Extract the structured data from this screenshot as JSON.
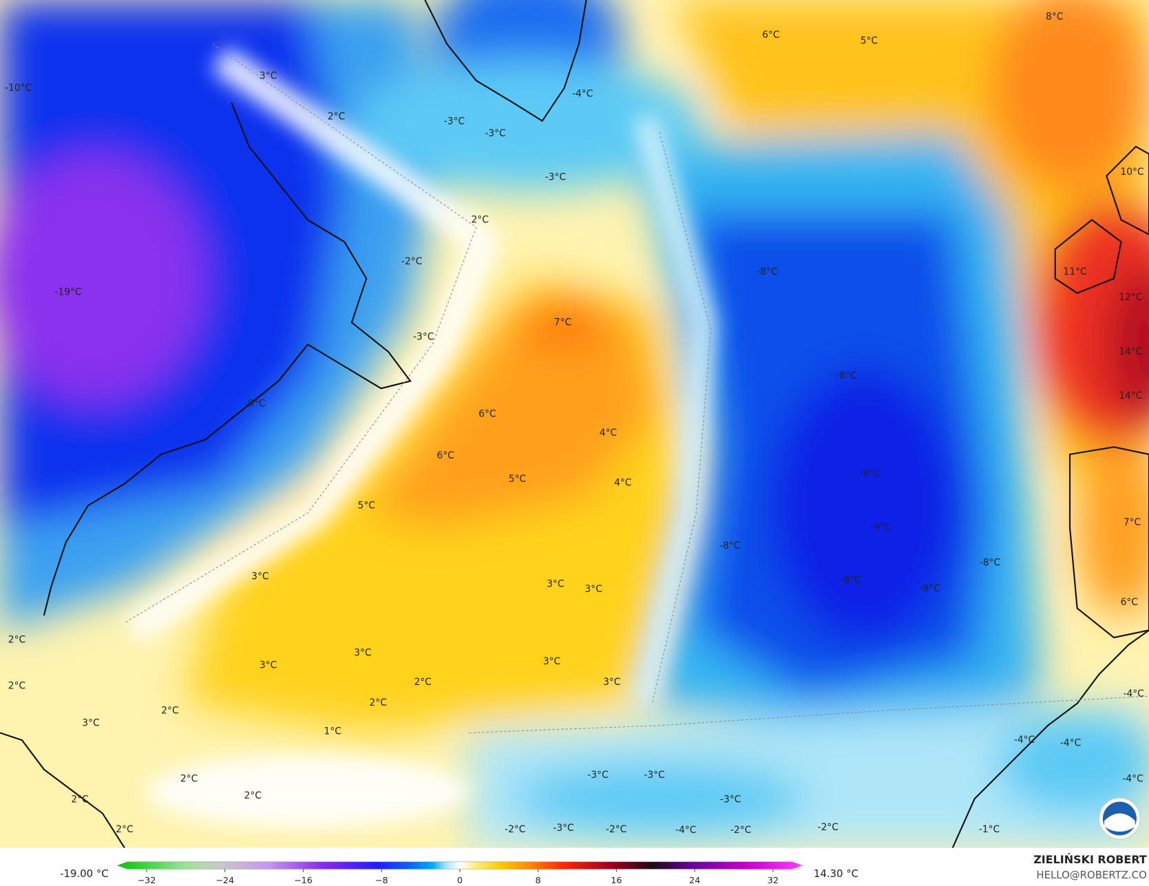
{
  "map": {
    "labels": [
      "-10°C",
      "3°C",
      "2°C",
      "-3°C",
      "-3°C",
      "-4°C",
      "-3°C",
      "6°C",
      "5°C",
      "8°C",
      "10°C",
      "2°C",
      "-2°C",
      "-19°C",
      "-3°C",
      "7°C",
      "-8°C",
      "11°C",
      "12°C",
      "14°C",
      "14°C",
      "-8°C",
      "-9°C",
      "6°C",
      "4°C",
      "6°C",
      "5°C",
      "4°C",
      "-9°C",
      "5°C",
      "7°C",
      "-9°C",
      "-8°C",
      "-8°C",
      "3°C",
      "3°C",
      "3°C",
      "-8°C",
      "-9°C",
      "6°C",
      "2°C",
      "3°C",
      "3°C",
      "3°C",
      "2°C",
      "3°C",
      "2°C",
      "2°C",
      "2°C",
      "-4°C",
      "3°C",
      "1°C",
      "-4°C",
      "-4°C",
      "-3°C",
      "-3°C",
      "2°C",
      "-4°C",
      "2°C",
      "-3°C",
      "2°C",
      "2°C",
      "-2°C",
      "-3°C",
      "-2°C",
      "-4°C",
      "-2°C",
      "-2°C",
      "-1°C"
    ]
  },
  "colorbar": {
    "min_label": "-19.00 °C",
    "max_label": "14.30 °C",
    "lim": [
      -35,
      35
    ],
    "ticks": [
      {
        "value": -32,
        "label": "−32"
      },
      {
        "value": -24,
        "label": "−24"
      },
      {
        "value": -16,
        "label": "−16"
      },
      {
        "value": -8,
        "label": "−8"
      },
      0,
      8,
      16,
      24,
      32
    ]
  },
  "credit": {
    "author": "ZIELIŃSKI ROBERT",
    "email": "HELLO@ROBERTZ.CO"
  }
}
